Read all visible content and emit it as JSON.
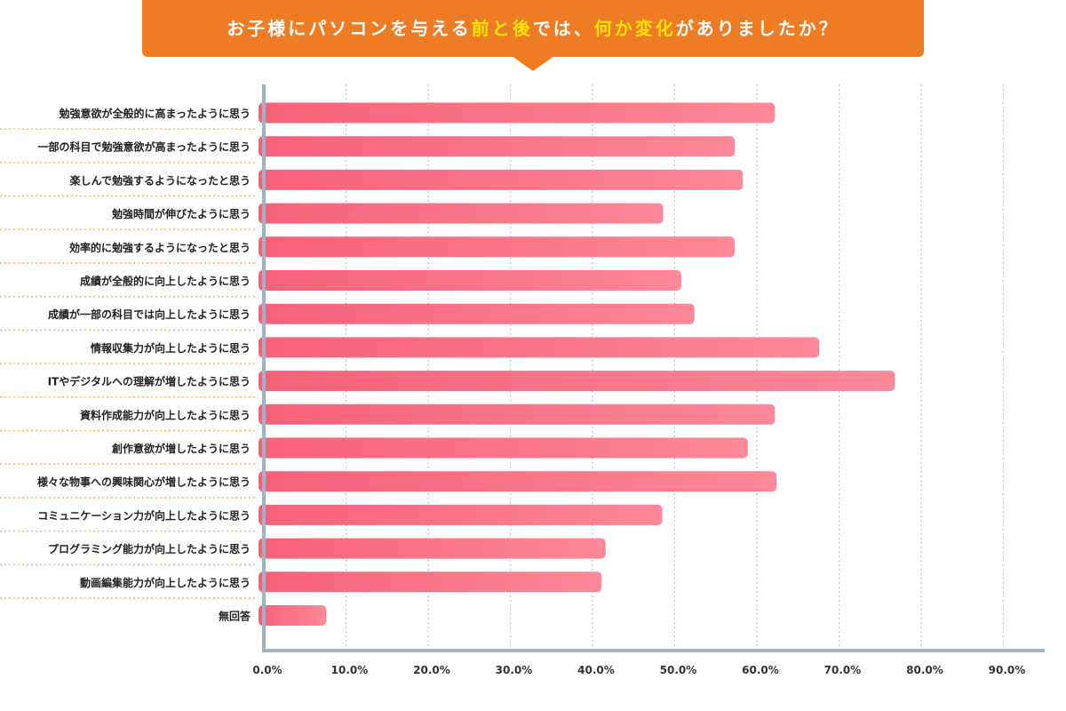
{
  "title": {
    "pre": "お子様にパソコンを与える",
    "h1": "前と後",
    "mid": "では、",
    "h2": "何か変化",
    "post": "がありましたか？"
  },
  "colors": {
    "title_bg": "#ee7c24",
    "title_highlight": "#ffe600",
    "bar_start": "#f7617a",
    "bar_end": "#fc8898",
    "axis": "#9fb3c2",
    "grid": "#b8c4de",
    "separator": "#f0b25a"
  },
  "chart_data": {
    "type": "bar",
    "orientation": "horizontal",
    "categories": [
      "勉強意欲が全般的に高まったように思う",
      "一部の科目で勉強意欲が高まったように思う",
      "楽しんで勉強するようになったと思う",
      "勉強時間が伸びたように思う",
      "効率的に勉強するようになったと思う",
      "成績が全般的に向上したように思う",
      "成績が一部の科目では向上したように思う",
      "情報収集力が向上したように思う",
      "ITやデジタルへの理解が増したように思う",
      "資料作成能力が向上したように思う",
      "創作意欲が増したように思う",
      "様々な物事への興味関心が増したように思う",
      "コミュニケーション力が向上したように思う",
      "プログラミング能力が向上したように思う",
      "動画編集能力が向上したように思う",
      "無回答"
    ],
    "values": [
      62.2,
      57.3,
      58.3,
      48.6,
      57.3,
      50.8,
      52.4,
      67.6,
      76.8,
      62.2,
      58.9,
      62.4,
      48.5,
      41.6,
      41.1,
      7.6
    ],
    "xlim": [
      0,
      90
    ],
    "ticks": [
      "0.0%",
      "10.0%",
      "20.0%",
      "30.0%",
      "40.0%",
      "50.0%",
      "60.0%",
      "70.0%",
      "80.0%",
      "90.0%"
    ],
    "grid": true
  }
}
